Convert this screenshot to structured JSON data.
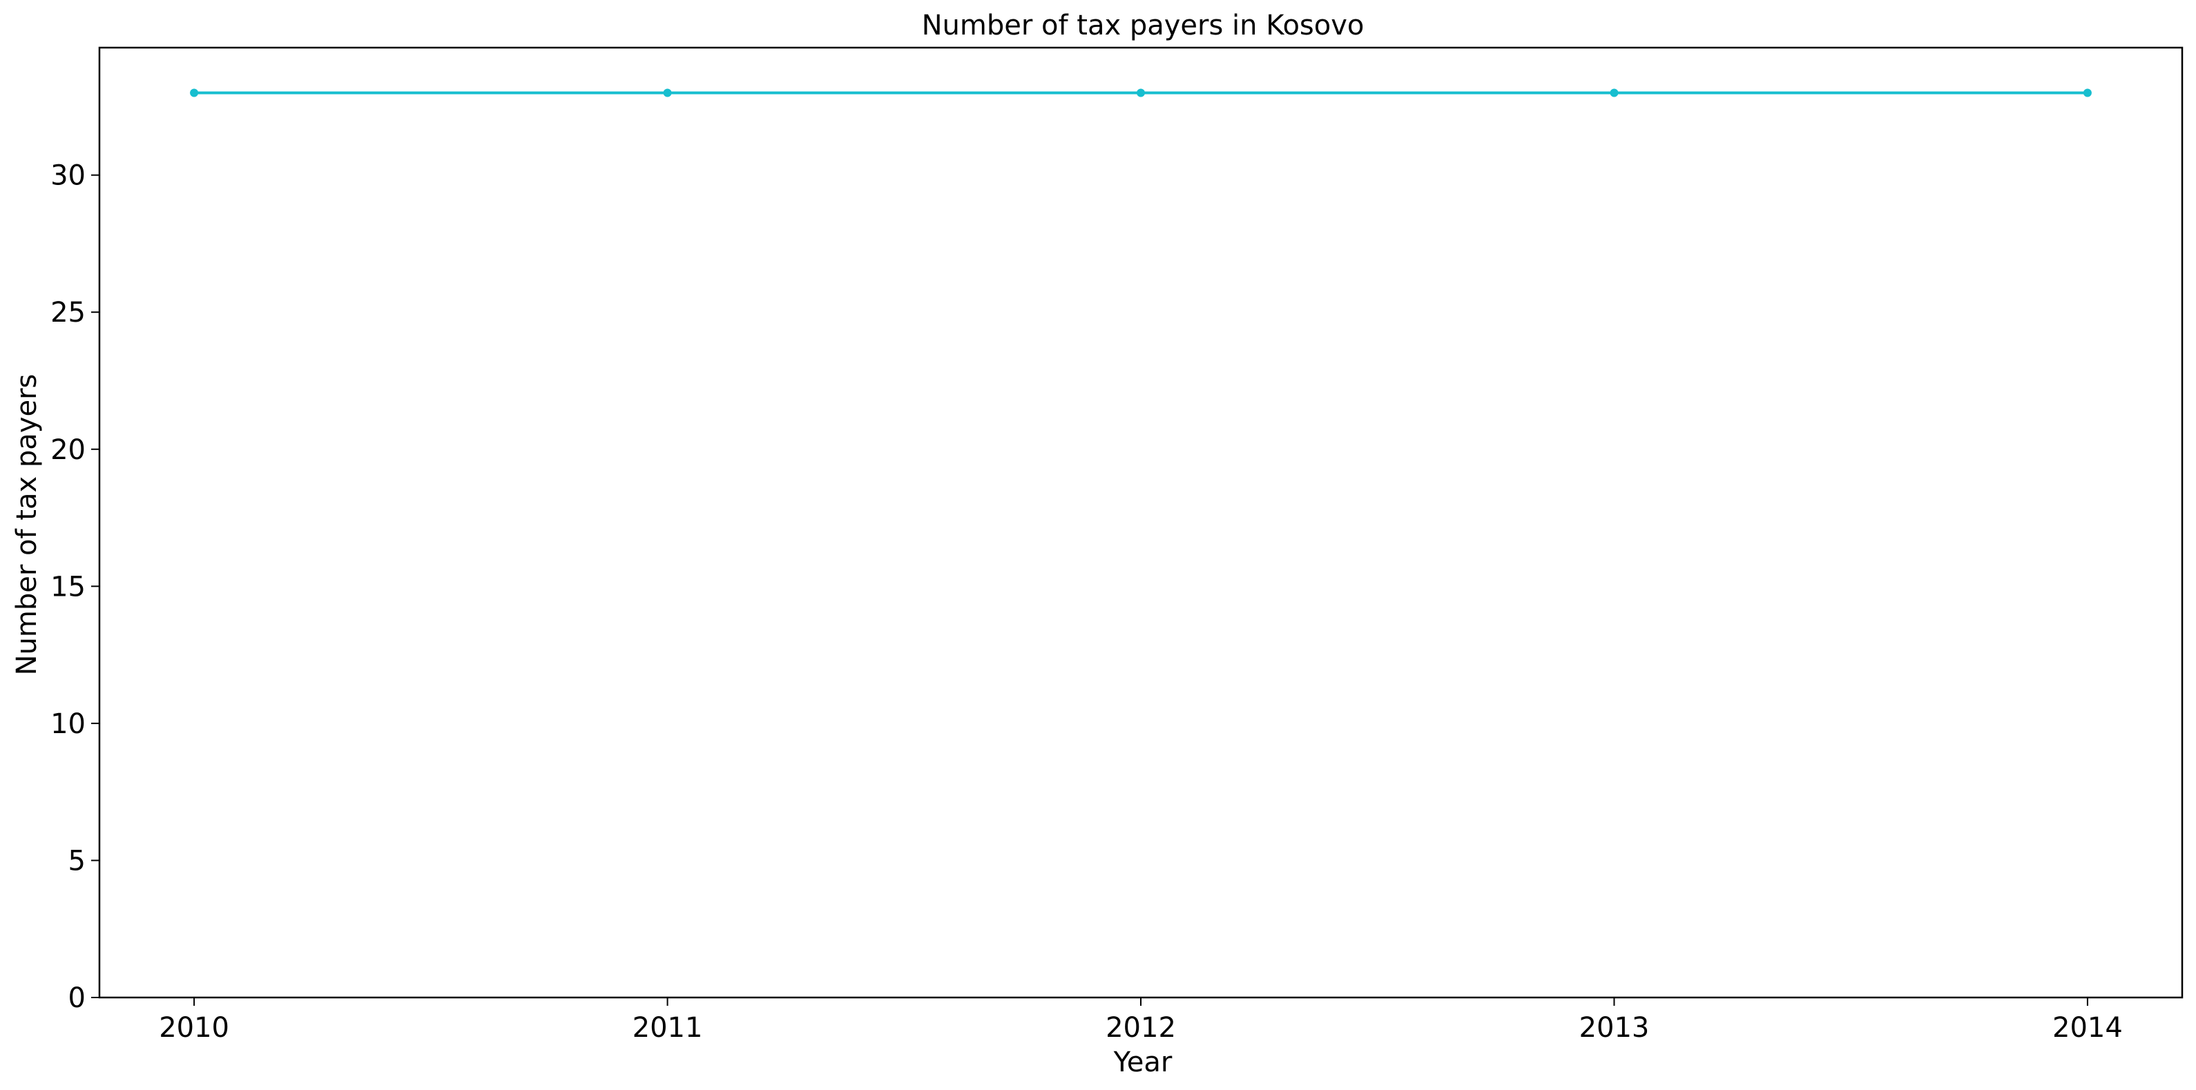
{
  "chart_data": {
    "type": "line",
    "title": "Number of tax payers in Kosovo",
    "xlabel": "Year",
    "ylabel": "Number of tax payers",
    "x": [
      2010,
      2011,
      2012,
      2013,
      2014
    ],
    "x_tick_labels": [
      "2010",
      "2011",
      "2012",
      "2013",
      "2014"
    ],
    "y_ticks": [
      0,
      5,
      10,
      15,
      20,
      25,
      30
    ],
    "y_tick_labels": [
      "0",
      "5",
      "10",
      "15",
      "20",
      "25",
      "30"
    ],
    "xlim": [
      2009.8,
      2014.2
    ],
    "ylim": [
      0,
      34.65
    ],
    "grid": false,
    "series": [
      {
        "values": [
          33,
          33,
          33,
          33,
          33
        ],
        "color": "#17becf",
        "marker": "circle"
      }
    ]
  },
  "colors": {
    "axis": "#000000",
    "background": "#ffffff"
  }
}
